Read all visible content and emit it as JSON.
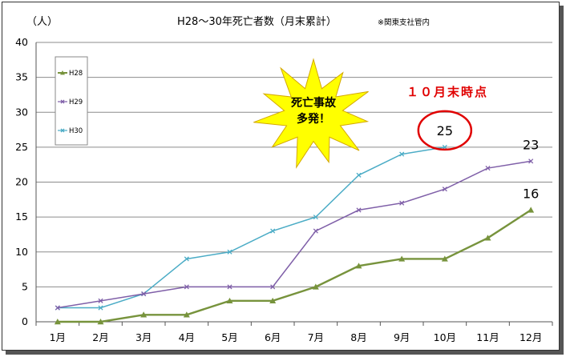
{
  "chart_data": {
    "type": "line",
    "title": "H28～30年死亡者数（月末累計）",
    "title_note": "※関東支社管内",
    "ylabel": "（人）",
    "xlabel": "",
    "categories": [
      "1月",
      "2月",
      "3月",
      "4月",
      "5月",
      "6月",
      "7月",
      "8月",
      "9月",
      "10月",
      "11月",
      "12月"
    ],
    "ylim": [
      0,
      40
    ],
    "yticks": [
      0,
      5,
      10,
      15,
      20,
      25,
      30,
      35,
      40
    ],
    "grid": true,
    "legend_position": "top-left",
    "series": [
      {
        "name": "H28",
        "color": "#77933c",
        "marker": "triangle",
        "values": [
          0,
          0,
          1,
          1,
          3,
          3,
          5,
          8,
          9,
          9,
          12,
          16
        ]
      },
      {
        "name": "H29",
        "color": "#7f5fa8",
        "marker": "x",
        "values": [
          2,
          3,
          4,
          5,
          5,
          5,
          13,
          16,
          17,
          19,
          22,
          23
        ]
      },
      {
        "name": "H30",
        "color": "#4bacc6",
        "marker": "x",
        "values": [
          2,
          2,
          4,
          9,
          10,
          13,
          15,
          21,
          24,
          25,
          null,
          null
        ]
      }
    ],
    "end_labels": [
      {
        "series": "H28",
        "text": "16"
      },
      {
        "series": "H29",
        "text": "23"
      },
      {
        "series": "H30",
        "text": "25"
      }
    ],
    "annotations": {
      "burst_line1": "死亡事故",
      "burst_line2": "多発！",
      "red_note": "１０月末時点"
    }
  }
}
